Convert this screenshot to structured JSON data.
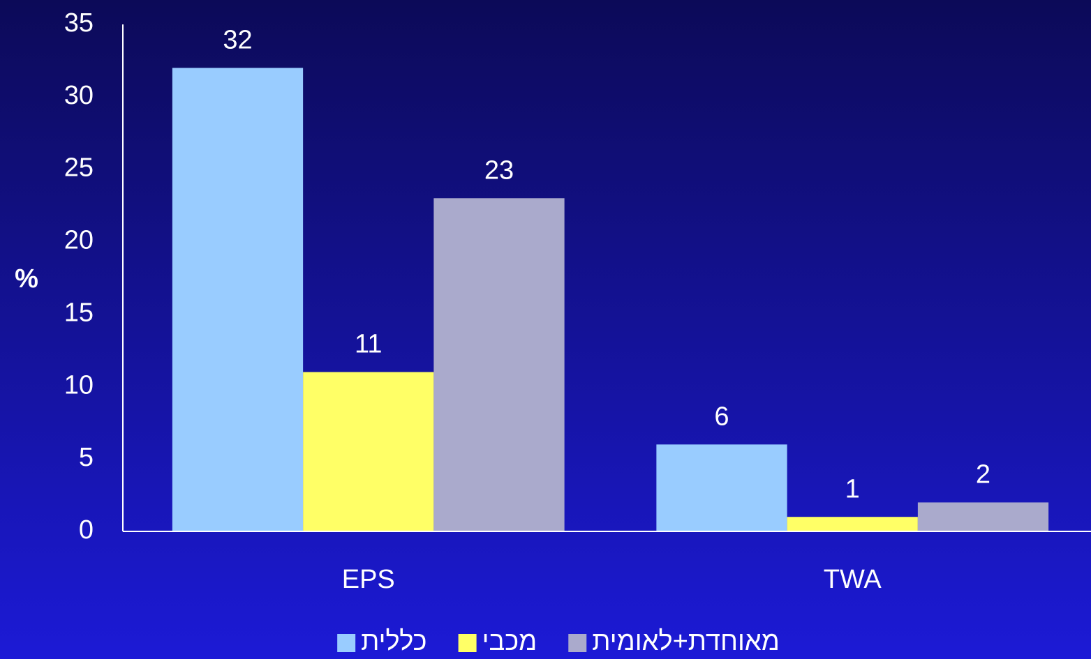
{
  "chart_data": {
    "type": "bar",
    "y_label": "%",
    "categories": [
      "EPS",
      "TWA"
    ],
    "series": [
      {
        "name": "כללית",
        "color": "#99ccff",
        "values": [
          32,
          6
        ]
      },
      {
        "name": "מכבי",
        "color": "#ffff66",
        "values": [
          11,
          1
        ]
      },
      {
        "name": "מאוחדת+לאומית",
        "color": "#aaaacc",
        "values": [
          23,
          2
        ]
      }
    ],
    "ylim": [
      0,
      35
    ],
    "yticks": [
      0,
      5,
      10,
      15,
      20,
      25,
      30,
      35
    ],
    "grid": false,
    "legend": "bottom"
  }
}
